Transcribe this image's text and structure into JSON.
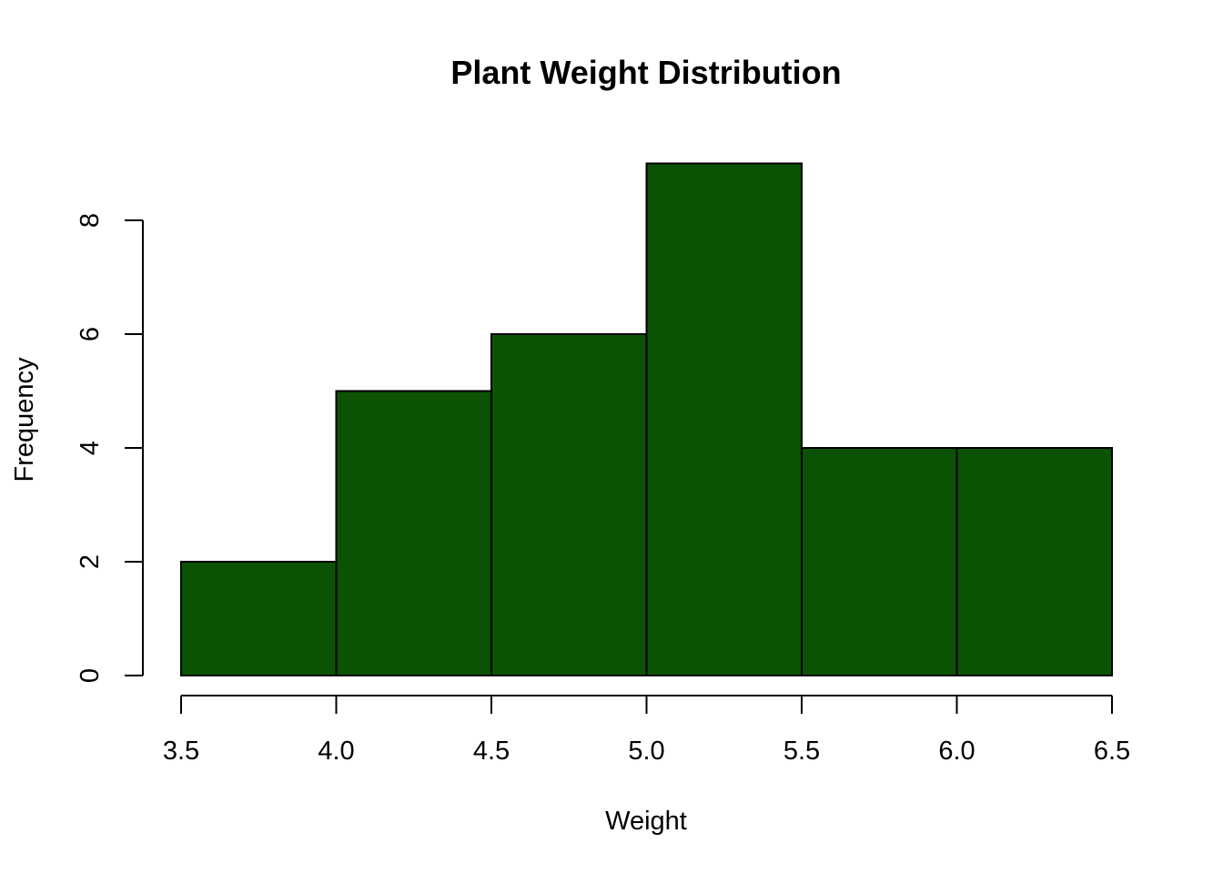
{
  "chart_data": {
    "type": "bar",
    "subtype": "histogram",
    "title": "Plant Weight Distribution",
    "xlabel": "Weight",
    "ylabel": "Frequency",
    "bins": [
      {
        "start": 3.5,
        "end": 4.0,
        "count": 2
      },
      {
        "start": 4.0,
        "end": 4.5,
        "count": 5
      },
      {
        "start": 4.5,
        "end": 5.0,
        "count": 6
      },
      {
        "start": 5.0,
        "end": 5.5,
        "count": 9
      },
      {
        "start": 5.5,
        "end": 6.0,
        "count": 4
      },
      {
        "start": 6.0,
        "end": 6.5,
        "count": 4
      }
    ],
    "x_ticks": [
      "3.5",
      "4.0",
      "4.5",
      "5.0",
      "5.5",
      "6.0",
      "6.5"
    ],
    "y_ticks": [
      "0",
      "2",
      "4",
      "6",
      "8"
    ],
    "xlim": [
      3.5,
      6.5
    ],
    "ylim": [
      0,
      9
    ],
    "grid": false,
    "legend": "none",
    "bar_color": "#0b5204",
    "edge_color": "#000000"
  }
}
